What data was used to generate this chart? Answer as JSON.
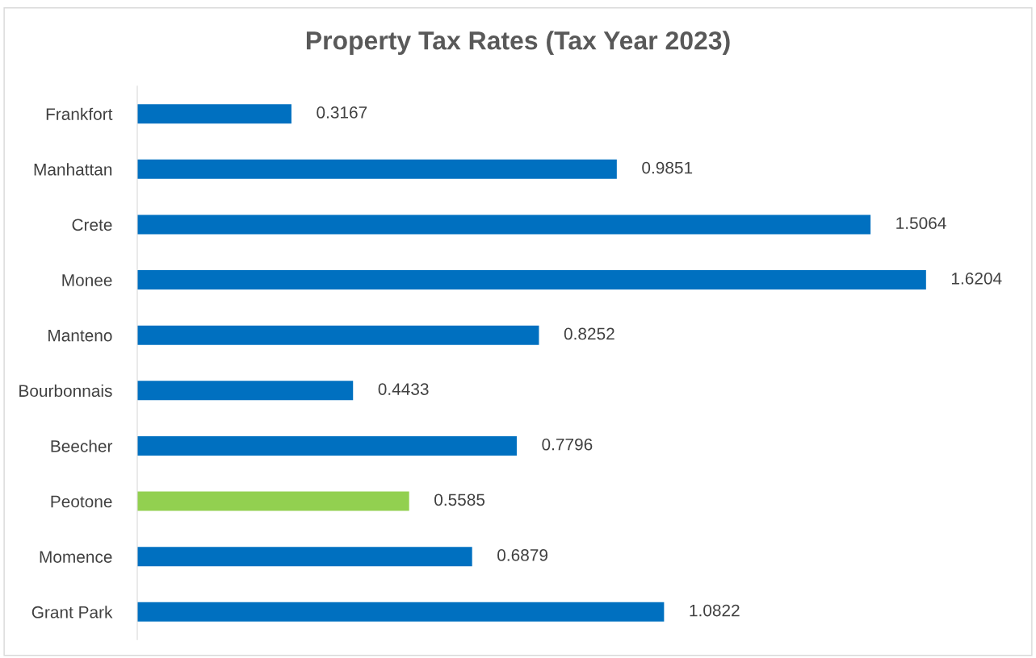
{
  "chart_data": {
    "type": "bar",
    "orientation": "horizontal",
    "title": "Property Tax Rates (Tax Year 2023)",
    "categories": [
      "Frankfort",
      "Manhattan",
      "Crete",
      "Monee",
      "Manteno",
      "Bourbonnais",
      "Beecher",
      "Peotone",
      "Momence",
      "Grant Park"
    ],
    "values": [
      0.3167,
      0.9851,
      1.5064,
      1.6204,
      0.8252,
      0.4433,
      0.7796,
      0.5585,
      0.6879,
      1.0822
    ],
    "colors": [
      "#0070c0",
      "#0070c0",
      "#0070c0",
      "#0070c0",
      "#0070c0",
      "#0070c0",
      "#0070c0",
      "#92d050",
      "#0070c0",
      "#0070c0"
    ],
    "data_labels": true,
    "grid": false,
    "legend": false,
    "tick_labels": "y"
  }
}
